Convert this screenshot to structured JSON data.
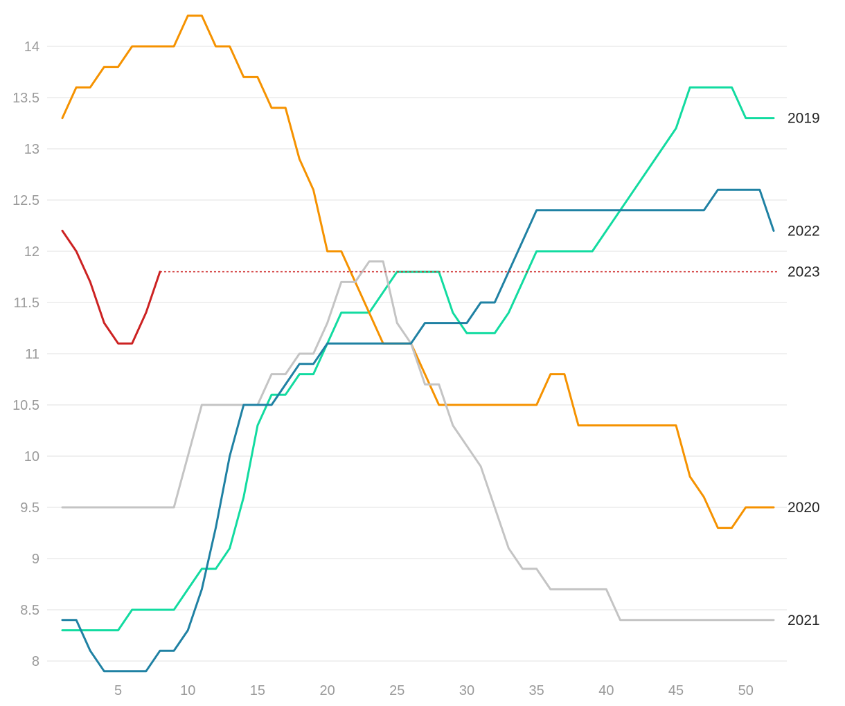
{
  "chart_data": {
    "type": "line",
    "title": "",
    "xlabel": "",
    "ylabel": "",
    "xlim": [
      0,
      53
    ],
    "ylim": [
      7.95,
      14.35
    ],
    "x_ticks": [
      5,
      10,
      15,
      20,
      25,
      30,
      35,
      40,
      45,
      50
    ],
    "y_ticks": [
      8,
      8.5,
      9,
      9.5,
      10,
      10.5,
      11,
      11.5,
      12,
      12.5,
      13,
      13.5,
      14
    ],
    "y_tick_labels": [
      "8",
      "8.5",
      "9",
      "9.5",
      "10",
      "10.5",
      "11",
      "11.5",
      "12",
      "12.5",
      "13",
      "13.5",
      "14"
    ],
    "x_tick_labels": [
      "5",
      "10",
      "15",
      "20",
      "25",
      "30",
      "35",
      "40",
      "45",
      "50"
    ],
    "grid": "horizontal",
    "legend": "end-of-line labels",
    "series": [
      {
        "label": "2019",
        "color": "#12dba0",
        "x": [
          1,
          2,
          3,
          4,
          5,
          6,
          7,
          8,
          9,
          10,
          11,
          12,
          13,
          14,
          15,
          16,
          17,
          18,
          19,
          20,
          21,
          22,
          23,
          24,
          25,
          26,
          27,
          28,
          29,
          30,
          31,
          32,
          33,
          34,
          35,
          36,
          37,
          38,
          39,
          40,
          41,
          42,
          43,
          44,
          45,
          46,
          47,
          48,
          49,
          50,
          51,
          52
        ],
        "values": [
          8.3,
          8.3,
          8.3,
          8.3,
          8.3,
          8.5,
          8.5,
          8.5,
          8.5,
          8.7,
          8.9,
          8.9,
          9.1,
          9.6,
          10.3,
          10.6,
          10.6,
          10.8,
          10.8,
          11.1,
          11.4,
          11.4,
          11.4,
          11.6,
          11.8,
          11.8,
          11.8,
          11.8,
          11.4,
          11.2,
          11.2,
          11.2,
          11.4,
          11.7,
          12.0,
          12.0,
          12.0,
          12.0,
          12.0,
          12.2,
          12.4,
          12.6,
          12.8,
          13.0,
          13.2,
          13.6,
          13.6,
          13.6,
          13.6,
          13.3,
          13.3,
          13.3
        ]
      },
      {
        "label": "2020",
        "color": "#f59200",
        "x": [
          1,
          2,
          3,
          4,
          5,
          6,
          7,
          8,
          9,
          10,
          11,
          12,
          13,
          14,
          15,
          16,
          17,
          18,
          19,
          20,
          21,
          22,
          23,
          24,
          25,
          26,
          27,
          28,
          29,
          30,
          31,
          32,
          33,
          34,
          35,
          36,
          37,
          38,
          39,
          40,
          41,
          42,
          43,
          44,
          45,
          46,
          47,
          48,
          49,
          50,
          51,
          52
        ],
        "values": [
          13.3,
          13.6,
          13.6,
          13.8,
          13.8,
          14.0,
          14.0,
          14.0,
          14.0,
          14.3,
          14.3,
          14.0,
          14.0,
          13.7,
          13.7,
          13.4,
          13.4,
          12.9,
          12.6,
          12.0,
          12.0,
          11.7,
          11.4,
          11.1,
          11.1,
          11.1,
          10.8,
          10.5,
          10.5,
          10.5,
          10.5,
          10.5,
          10.5,
          10.5,
          10.5,
          10.8,
          10.8,
          10.3,
          10.3,
          10.3,
          10.3,
          10.3,
          10.3,
          10.3,
          10.3,
          9.8,
          9.6,
          9.3,
          9.3,
          9.5,
          9.5,
          9.5
        ]
      },
      {
        "label": "2021",
        "color": "#c4c4c4",
        "x": [
          1,
          2,
          3,
          4,
          5,
          6,
          7,
          8,
          9,
          10,
          11,
          12,
          13,
          14,
          15,
          16,
          17,
          18,
          19,
          20,
          21,
          22,
          23,
          24,
          25,
          26,
          27,
          28,
          29,
          30,
          31,
          32,
          33,
          34,
          35,
          36,
          37,
          38,
          39,
          40,
          41,
          42,
          43,
          44,
          45,
          46,
          47,
          48,
          49,
          50,
          51,
          52
        ],
        "values": [
          9.5,
          9.5,
          9.5,
          9.5,
          9.5,
          9.5,
          9.5,
          9.5,
          9.5,
          10.0,
          10.5,
          10.5,
          10.5,
          10.5,
          10.5,
          10.8,
          10.8,
          11.0,
          11.0,
          11.3,
          11.7,
          11.7,
          11.9,
          11.9,
          11.3,
          11.1,
          10.7,
          10.7,
          10.3,
          10.1,
          9.9,
          9.5,
          9.1,
          8.9,
          8.9,
          8.7,
          8.7,
          8.7,
          8.7,
          8.7,
          8.4,
          8.4,
          8.4,
          8.4,
          8.4,
          8.4,
          8.4,
          8.4,
          8.4,
          8.4,
          8.4,
          8.4
        ]
      },
      {
        "label": "2022",
        "color": "#1f81a3",
        "x": [
          1,
          2,
          3,
          4,
          5,
          6,
          7,
          8,
          9,
          10,
          11,
          12,
          13,
          14,
          15,
          16,
          17,
          18,
          19,
          20,
          21,
          22,
          23,
          24,
          25,
          26,
          27,
          28,
          29,
          30,
          31,
          32,
          33,
          34,
          35,
          36,
          37,
          38,
          39,
          40,
          41,
          42,
          43,
          44,
          45,
          46,
          47,
          48,
          49,
          50,
          51,
          52
        ],
        "values": [
          8.4,
          8.4,
          8.1,
          7.9,
          7.9,
          7.9,
          7.9,
          8.1,
          8.1,
          8.3,
          8.7,
          9.3,
          10.0,
          10.5,
          10.5,
          10.5,
          10.7,
          10.9,
          10.9,
          11.1,
          11.1,
          11.1,
          11.1,
          11.1,
          11.1,
          11.1,
          11.3,
          11.3,
          11.3,
          11.3,
          11.5,
          11.5,
          11.8,
          12.1,
          12.4,
          12.4,
          12.4,
          12.4,
          12.4,
          12.4,
          12.4,
          12.4,
          12.4,
          12.4,
          12.4,
          12.4,
          12.4,
          12.6,
          12.6,
          12.6,
          12.6,
          12.2
        ]
      },
      {
        "label": "2023",
        "color": "#cc2222",
        "x": [
          1,
          2,
          3,
          4,
          5,
          6,
          7,
          8
        ],
        "values": [
          12.2,
          12.0,
          11.7,
          11.3,
          11.1,
          11.1,
          11.4,
          11.8
        ],
        "reference_line_value": 11.8,
        "reference_line_style": "dotted"
      }
    ]
  }
}
